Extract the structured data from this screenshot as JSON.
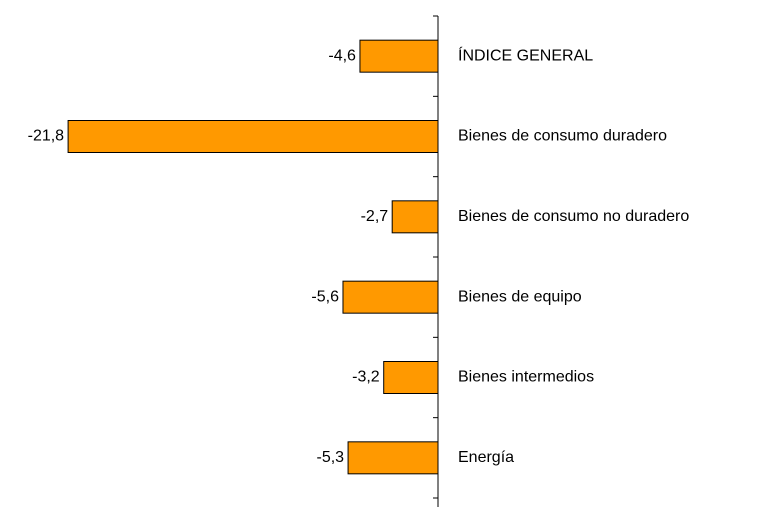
{
  "chart_data": {
    "type": "bar",
    "orientation": "horizontal",
    "categories": [
      "ÍNDICE GENERAL",
      "Bienes de consumo duradero",
      "Bienes de consumo no duradero",
      "Bienes de equipo",
      "Bienes intermedios",
      "Energía"
    ],
    "values": [
      -4.6,
      -21.8,
      -2.7,
      -5.6,
      -3.2,
      -5.3
    ],
    "value_labels": [
      "-4,6",
      "-21,8",
      "-2,7",
      "-5,6",
      "-3,2",
      "-5,3"
    ],
    "color": "#ff9900",
    "xlim": [
      -22,
      0
    ]
  }
}
